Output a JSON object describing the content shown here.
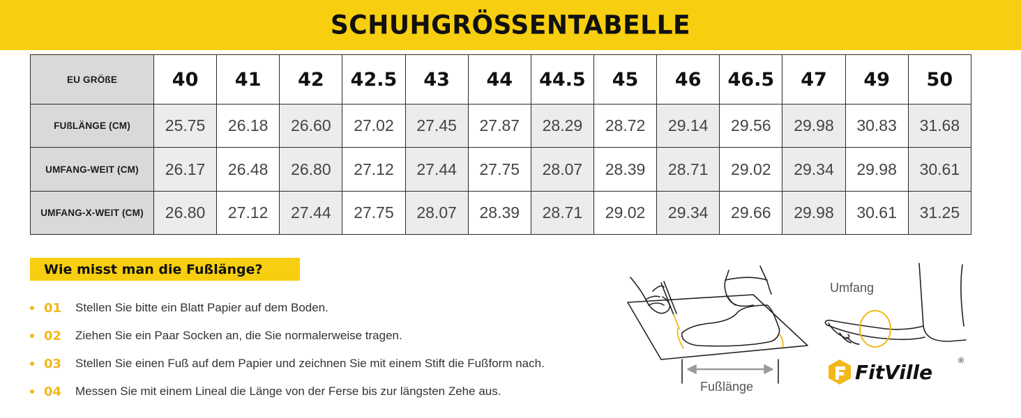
{
  "title": "SCHUHGRÖSSENTABELLE",
  "table": {
    "header_label": "EU GRÖßE",
    "sizes": [
      "40",
      "41",
      "42",
      "42.5",
      "43",
      "44",
      "44.5",
      "45",
      "46",
      "46.5",
      "47",
      "49",
      "50"
    ],
    "rows": [
      {
        "label": "FUßLÄNGE (CM)",
        "values": [
          "25.75",
          "26.18",
          "26.60",
          "27.02",
          "27.45",
          "27.87",
          "28.29",
          "28.72",
          "29.14",
          "29.56",
          "29.98",
          "30.83",
          "31.68"
        ]
      },
      {
        "label": "UMFANG-WEIT (CM)",
        "values": [
          "26.17",
          "26.48",
          "26.80",
          "27.12",
          "27.44",
          "27.75",
          "28.07",
          "28.39",
          "28.71",
          "29.02",
          "29.34",
          "29.98",
          "30.61"
        ]
      },
      {
        "label": "UMFANG-X-WEIT (CM)",
        "values": [
          "26.80",
          "27.12",
          "27.44",
          "27.75",
          "28.07",
          "28.39",
          "28.71",
          "29.02",
          "29.34",
          "29.66",
          "29.98",
          "30.61",
          "31.25"
        ]
      }
    ]
  },
  "how_to": {
    "title": "Wie misst man die Fußlänge?",
    "steps": [
      {
        "num": "01",
        "text": "Stellen Sie bitte ein Blatt Papier auf dem Boden."
      },
      {
        "num": "02",
        "text": "Ziehen Sie ein Paar Socken an, die Sie normalerweise tragen."
      },
      {
        "num": "03",
        "text": "Stellen Sie einen Fuß auf dem Papier und zeichnen Sie mit einem Stift die Fußform nach."
      },
      {
        "num": "04",
        "text": "Messen Sie mit einem Lineal die Länge von der Ferse bis zur längsten Zehe aus."
      }
    ]
  },
  "illustration": {
    "umfang_label": "Umfang",
    "fusslaenge_label": "Fußlänge"
  },
  "logo": {
    "text": "FitVille",
    "reg": "®"
  },
  "colors": {
    "accent": "#f7cf10",
    "bullet": "#f2b81a",
    "label_bg": "#d9d9d9",
    "stripe_bg": "#ececec"
  }
}
